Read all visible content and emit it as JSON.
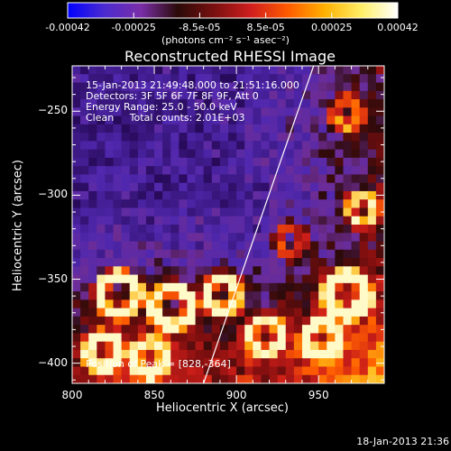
{
  "colorbar": {
    "ticks": [
      "-0.00042",
      "-0.00025",
      "-8.5e-05",
      "8.5e-05",
      "0.00025",
      "0.00042"
    ],
    "unit_label": "(photons cm⁻² s⁻¹ asec⁻²)",
    "colors": [
      "#0000ff",
      "#4b2bd0",
      "#7a2ea8",
      "#2a0a08",
      "#7a1010",
      "#d01e1e",
      "#ff5a00",
      "#ffb000",
      "#ffee66",
      "#ffffff"
    ]
  },
  "chart_data": {
    "type": "heatmap",
    "title": "Reconstructed RHESSI Image",
    "xlabel": "Heliocentric X (arcsec)",
    "ylabel": "Heliocentric Y (arcsec)",
    "xlim": [
      800,
      990
    ],
    "ylim": [
      -412,
      -223
    ],
    "xticks": [
      800,
      850,
      900,
      950
    ],
    "yticks": [
      -250,
      -300,
      -350,
      -400
    ],
    "info_lines": [
      "15-Jan-2013 21:49:48.000 to 21:51:16.000",
      "Detectors: 3F 5F 6F 7F 8F 9F, Att 0",
      "Energy Range: 25.0 - 50.0 keV",
      "Clean     Total counts: 2.01E+03"
    ],
    "peak_label": "Position of Peak = [828,-364]",
    "peak": [
      828,
      -364
    ],
    "limb_line": [
      [
        880,
        -412
      ],
      [
        947,
        -223
      ]
    ]
  },
  "timestamp": "18-Jan-2013 21:36"
}
